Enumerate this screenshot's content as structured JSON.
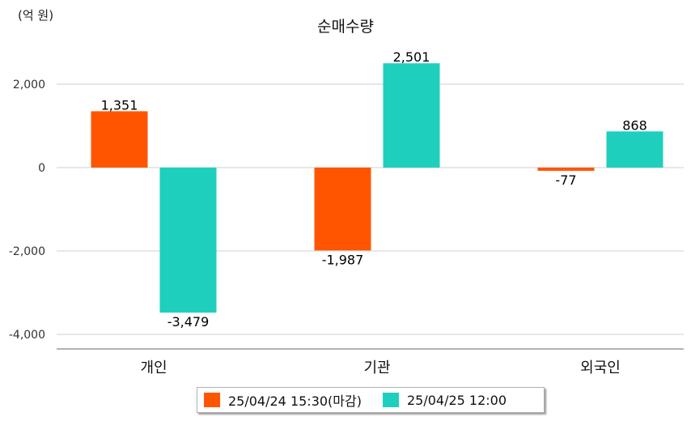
{
  "unit_label": "(억 원)",
  "chart_data": {
    "type": "bar",
    "title": "순매수량",
    "xlabel": "",
    "ylabel": "",
    "categories": [
      "개인",
      "기관",
      "외국인"
    ],
    "series": [
      {
        "name": "25/04/24 15:30(마감)",
        "color": "#ff5500",
        "values": [
          1351,
          -1987,
          -77
        ]
      },
      {
        "name": "25/04/25 12:00",
        "color": "#1fcfbd",
        "values": [
          -3479,
          2501,
          868
        ]
      }
    ],
    "data_labels": [
      [
        "1,351",
        "-1,987",
        "-77"
      ],
      [
        "-3,479",
        "2,501",
        "868"
      ]
    ],
    "yticks": [
      2000,
      0,
      -2000,
      -4000
    ],
    "ytick_labels": [
      "2,000",
      "0",
      "-2,000",
      "-4,000"
    ],
    "ylim": [
      -4200,
      3000
    ],
    "grid": true,
    "legend_position": "bottom"
  }
}
